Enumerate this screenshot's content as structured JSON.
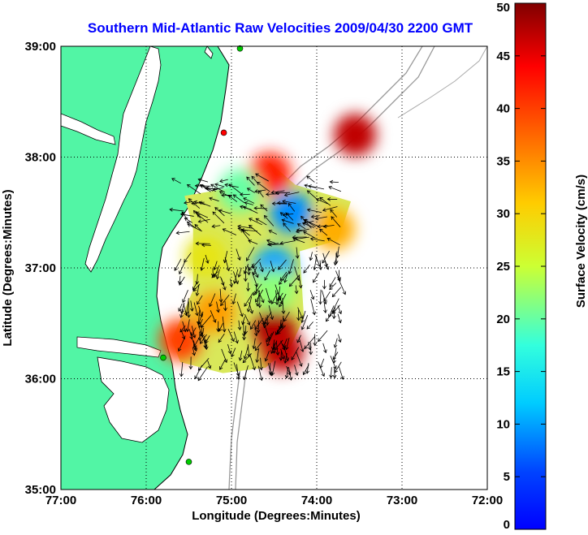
{
  "chart_data": {
    "type": "heatmap",
    "title": "Southern Mid-Atlantic Raw Velocities 2009/04/30 2200 GMT",
    "xlabel": "Longitude (Degrees:Minutes)",
    "ylabel": "Latitude (Degrees:Minutes)",
    "x_ticks": [
      "77:00",
      "76:00",
      "75:00",
      "74:00",
      "73:00",
      "72:00"
    ],
    "y_ticks": [
      "35:00",
      "36:00",
      "37:00",
      "38:00",
      "39:00"
    ],
    "xlim": [
      -77,
      -72
    ],
    "ylim": [
      35,
      39
    ],
    "grid": true,
    "colorbar": {
      "label": "Surface Velocity (cm/s)",
      "ticks": [
        0,
        5,
        10,
        15,
        20,
        25,
        30,
        35,
        40,
        45,
        50
      ],
      "range": [
        0,
        50
      ]
    },
    "stations": [
      {
        "lon": -74.9,
        "lat": 38.98,
        "color": "#00cc00"
      },
      {
        "lon": -75.09,
        "lat": 38.22,
        "color": "#ff0000"
      },
      {
        "lon": -75.8,
        "lat": 36.19,
        "color": "#00cc00"
      },
      {
        "lon": -75.5,
        "lat": 35.25,
        "color": "#00cc00"
      }
    ],
    "velocity_field": {
      "note_range_cm_s": [
        5,
        50
      ],
      "regions": [
        {
          "lon": -74.5,
          "lat": 36.45,
          "value": 48
        },
        {
          "lon": -74.4,
          "lat": 36.25,
          "value": 47
        },
        {
          "lon": -74.55,
          "lat": 37.85,
          "value": 42
        },
        {
          "lon": -73.55,
          "lat": 38.2,
          "value": 47
        },
        {
          "lon": -75.6,
          "lat": 36.35,
          "value": 40
        },
        {
          "lon": -75.2,
          "lat": 36.6,
          "value": 34
        },
        {
          "lon": -75.3,
          "lat": 37.1,
          "value": 28
        },
        {
          "lon": -74.5,
          "lat": 37.0,
          "value": 10
        },
        {
          "lon": -74.3,
          "lat": 37.5,
          "value": 9
        },
        {
          "lon": -74.9,
          "lat": 37.7,
          "value": 20
        },
        {
          "lon": -73.8,
          "lat": 37.35,
          "value": 33
        },
        {
          "lon": -74.5,
          "lat": 36.8,
          "value": 22
        }
      ]
    }
  }
}
